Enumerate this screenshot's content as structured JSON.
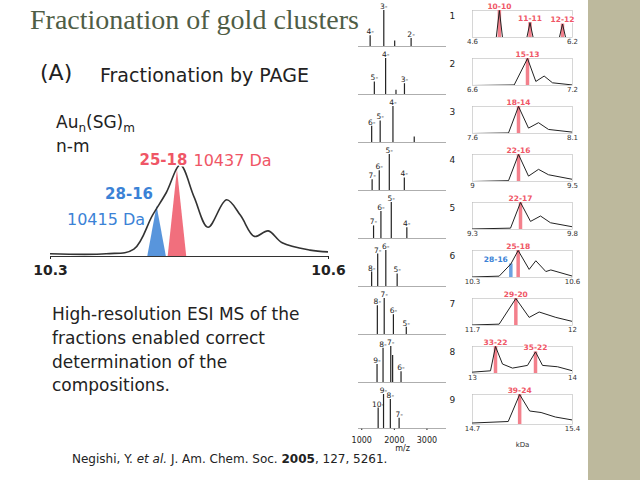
{
  "slide": {
    "title": "Fractionation of gold clusters",
    "section_label": "(A)",
    "section_title": "Fractionation by PAGE",
    "body_text": "High-resolution ESI MS of the fractions enabled correct determination of the compositions.",
    "citation": [
      {
        "text": "Negishi, Y. "
      },
      {
        "text": "et al.",
        "style": "italic"
      },
      {
        "text": " J. Am. Chem. Soc. "
      },
      {
        "text": "2005",
        "style": "bold"
      },
      {
        "text": ", 127, 5261."
      }
    ]
  },
  "chart_data": [
    {
      "type": "line",
      "key_formula": [
        {
          "text": "Au"
        },
        {
          "text": "n",
          "sub": true
        },
        {
          "text": "(SG)"
        },
        {
          "text": "m",
          "sub": true
        }
      ],
      "key_subtitle": "n-m",
      "xlim": [
        10.3,
        10.6
      ],
      "xticks": [
        10.3,
        10.6
      ],
      "ylim": [
        0,
        1.05
      ],
      "tick_labels": "x",
      "color": "#333333",
      "x": [
        10.3,
        10.36,
        10.39,
        10.41,
        10.425,
        10.44,
        10.455,
        10.47,
        10.49,
        10.505,
        10.52,
        10.535,
        10.55,
        10.58,
        10.6
      ],
      "values": [
        0.03,
        0.03,
        0.08,
        0.45,
        0.7,
        1.0,
        0.65,
        0.32,
        0.62,
        0.45,
        0.22,
        0.28,
        0.15,
        0.07,
        0.05
      ],
      "peaks": [
        {
          "name": "28-16",
          "mass_label": "10415 Da",
          "color": "#3b82d6",
          "x": [
            10.405,
            10.415,
            10.425
          ],
          "values": [
            0,
            0.55,
            0
          ]
        },
        {
          "name": "25-18",
          "mass_label": "10437 Da",
          "color": "#ef5666",
          "x": [
            10.427,
            10.437,
            10.447
          ],
          "values": [
            0,
            0.95,
            0
          ]
        }
      ]
    },
    {
      "type": "spectrum_stack",
      "x_label": "m/z",
      "xlim": [
        900,
        3600
      ],
      "xticks": [
        1000,
        2000,
        3000
      ],
      "ylim": [
        0,
        1
      ],
      "tick_labels": "x",
      "color": "#222222",
      "rows": [
        {
          "name": "1",
          "x": [
            1257,
            1676,
            2010,
            2514
          ],
          "values": [
            0.3,
            1.0,
            0.15,
            0.22
          ],
          "labels": [
            "4-",
            "3-",
            null,
            "2-"
          ]
        },
        {
          "name": "2",
          "x": [
            1386,
            1732,
            2050,
            2310
          ],
          "values": [
            0.35,
            1.0,
            0.12,
            0.3
          ],
          "labels": [
            "5-",
            "4-",
            null,
            "3-"
          ]
        },
        {
          "name": "3",
          "x": [
            1304,
            1565,
            1957,
            2610
          ],
          "values": [
            0.45,
            0.6,
            1.0,
            0.15
          ],
          "labels": [
            "6-",
            "5-",
            "4-",
            null
          ]
        },
        {
          "name": "4",
          "x": [
            1318,
            1537,
            1845,
            2306
          ],
          "values": [
            0.3,
            0.55,
            1.0,
            0.35
          ],
          "labels": [
            "7-",
            "6-",
            "5-",
            "4-"
          ]
        },
        {
          "name": "5",
          "x": [
            1362,
            1588,
            1906,
            2383
          ],
          "values": [
            0.35,
            0.75,
            1.0,
            0.3
          ],
          "labels": [
            "7-",
            "6-",
            "5-",
            "4-"
          ]
        },
        {
          "name": "6",
          "x": [
            1303,
            1489,
            1738,
            2086
          ],
          "values": [
            0.4,
            0.9,
            1.0,
            0.35
          ],
          "labels": [
            "8-",
            "7-",
            "6-",
            "5-"
          ]
        },
        {
          "name": "7",
          "x": [
            1478,
            1689,
            1971,
            2366
          ],
          "values": [
            0.8,
            1.0,
            0.55,
            0.2
          ],
          "labels": [
            "8-",
            "7-",
            "6-",
            "5-"
          ]
        },
        {
          "name": "8",
          "x": [
            1469,
            1653,
            1890,
            1947,
            2205
          ],
          "values": [
            0.5,
            0.95,
            1.0,
            0.75,
            0.3
          ],
          "labels": [
            "9-",
            "8-",
            "7-",
            null,
            "6-"
          ]
        },
        {
          "name": "9",
          "x": [
            1503,
            1668,
            1877,
            2146
          ],
          "values": [
            0.6,
            1.0,
            0.85,
            0.3
          ],
          "labels": [
            "10-",
            "9-",
            "8-",
            "7-"
          ]
        }
      ]
    },
    {
      "type": "spectrum_stack",
      "x_label": "kDa",
      "ylim": [
        0,
        1
      ],
      "tick_labels": "x",
      "color": "#222222",
      "rows": [
        {
          "xlim": [
            4.6,
            6.2
          ],
          "xticks": [
            4.6,
            6.2
          ],
          "x": [
            4.6,
            4.98,
            5.03,
            5.08,
            5.47,
            5.52,
            5.57,
            5.99,
            6.04,
            6.09,
            6.2
          ],
          "values": [
            0,
            0,
            1.0,
            0,
            0,
            0.55,
            0,
            0,
            0.5,
            0,
            0
          ],
          "highlights": [
            {
              "name": "10-10",
              "x": 5.03,
              "value": 1.0,
              "color": "#ef5666"
            },
            {
              "name": "11-11",
              "x": 5.52,
              "value": 0.55,
              "color": "#ef5666"
            },
            {
              "name": "12-12",
              "x": 6.04,
              "value": 0.5,
              "color": "#ef5666"
            }
          ]
        },
        {
          "xlim": [
            6.6,
            7.2
          ],
          "xticks": [
            6.6,
            7.2
          ],
          "x": [
            6.6,
            6.85,
            6.93,
            6.98,
            7.03,
            7.08,
            7.2
          ],
          "values": [
            0,
            0.02,
            1.0,
            0.15,
            0.35,
            0.1,
            0.02
          ],
          "highlights": [
            {
              "name": "15-13",
              "x": 6.93,
              "value": 1.0,
              "color": "#ef5666"
            }
          ]
        },
        {
          "xlim": [
            7.6,
            8.1
          ],
          "xticks": [
            7.6,
            8.1
          ],
          "x": [
            7.6,
            7.78,
            7.83,
            7.88,
            7.93,
            7.98,
            8.1
          ],
          "values": [
            0,
            0.02,
            1.0,
            0.2,
            0.4,
            0.15,
            0.05
          ],
          "highlights": [
            {
              "name": "18-14",
              "x": 7.83,
              "value": 1.0,
              "color": "#ef5666"
            }
          ]
        },
        {
          "xlim": [
            9.0,
            9.5
          ],
          "xticks": [
            9.0,
            9.5
          ],
          "x": [
            9.0,
            9.18,
            9.23,
            9.28,
            9.33,
            9.38,
            9.5
          ],
          "values": [
            0,
            0.03,
            1.0,
            0.2,
            0.45,
            0.25,
            0.08
          ],
          "highlights": [
            {
              "name": "22-16",
              "x": 9.23,
              "value": 1.0,
              "color": "#ef5666"
            }
          ]
        },
        {
          "xlim": [
            9.3,
            9.8
          ],
          "xticks": [
            9.3,
            9.8
          ],
          "x": [
            9.3,
            9.49,
            9.54,
            9.59,
            9.64,
            9.69,
            9.8
          ],
          "values": [
            0.02,
            0.05,
            1.0,
            0.3,
            0.5,
            0.25,
            0.1
          ],
          "highlights": [
            {
              "name": "22-17",
              "x": 9.54,
              "value": 1.0,
              "color": "#ef5666"
            }
          ]
        },
        {
          "xlim": [
            10.3,
            10.6
          ],
          "xticks": [
            10.3,
            10.6
          ],
          "x": [
            10.3,
            10.38,
            10.415,
            10.437,
            10.47,
            10.49,
            10.52,
            10.535,
            10.6
          ],
          "values": [
            0.02,
            0.05,
            0.5,
            1.0,
            0.3,
            0.62,
            0.22,
            0.28,
            0.05
          ],
          "highlights": [
            {
              "name": "28-16",
              "x": 10.415,
              "value": 0.5,
              "color": "#3b82d6"
            },
            {
              "name": "25-18",
              "x": 10.437,
              "value": 1.0,
              "color": "#ef5666"
            }
          ]
        },
        {
          "xlim": [
            11.7,
            12.0
          ],
          "xticks": [
            11.7,
            12.0
          ],
          "x": [
            11.7,
            11.78,
            11.83,
            11.87,
            11.9,
            11.95,
            12.0
          ],
          "values": [
            0.02,
            0.05,
            1.0,
            0.3,
            0.5,
            0.3,
            0.15
          ],
          "highlights": [
            {
              "name": "29-20",
              "x": 11.83,
              "value": 1.0,
              "color": "#ef5666"
            }
          ]
        },
        {
          "xlim": [
            13.0,
            14.0
          ],
          "xticks": [
            13.0,
            14.0
          ],
          "x": [
            13.0,
            13.18,
            13.23,
            13.3,
            13.4,
            13.55,
            13.63,
            13.7,
            13.85,
            14.0
          ],
          "values": [
            0.05,
            0.1,
            1.0,
            0.35,
            0.2,
            0.3,
            0.8,
            0.3,
            0.25,
            0.1
          ],
          "highlights": [
            {
              "name": "33-22",
              "x": 13.23,
              "value": 1.0,
              "color": "#ef5666"
            },
            {
              "name": "35-22",
              "x": 13.63,
              "value": 0.8,
              "color": "#ef5666"
            }
          ]
        },
        {
          "xlim": [
            14.7,
            15.4
          ],
          "xticks": [
            14.7,
            15.4
          ],
          "x": [
            14.7,
            14.95,
            15.03,
            15.1,
            15.18,
            15.28,
            15.4
          ],
          "values": [
            0.05,
            0.1,
            1.0,
            0.45,
            0.4,
            0.25,
            0.15
          ],
          "highlights": [
            {
              "name": "39-24",
              "x": 15.03,
              "value": 1.0,
              "color": "#ef5666"
            }
          ]
        }
      ]
    }
  ]
}
